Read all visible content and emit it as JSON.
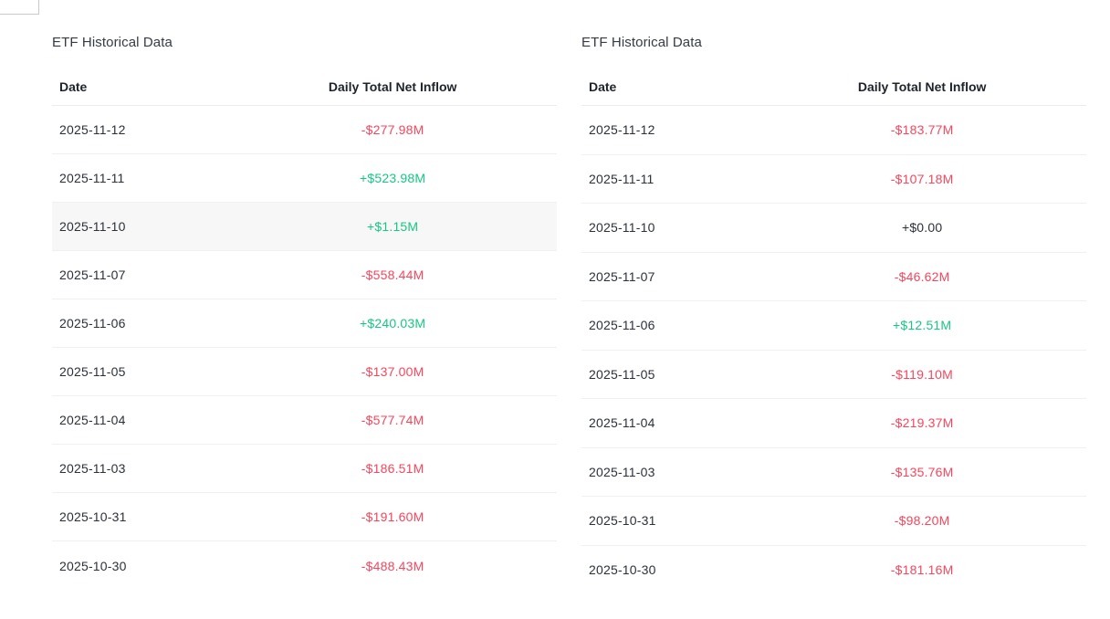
{
  "colors": {
    "positive": "#16c784",
    "negative": "#f6465d",
    "neutral": "#2b3139"
  },
  "tables": [
    {
      "title": "ETF Historical Data",
      "columns": {
        "date": "Date",
        "value": "Daily Total Net Inflow"
      },
      "rows": [
        {
          "date": "2025-11-12",
          "value": "-$277.98M",
          "direction": "negative",
          "highlighted": false
        },
        {
          "date": "2025-11-11",
          "value": "+$523.98M",
          "direction": "positive",
          "highlighted": false
        },
        {
          "date": "2025-11-10",
          "value": "+$1.15M",
          "direction": "positive",
          "highlighted": true
        },
        {
          "date": "2025-11-07",
          "value": "-$558.44M",
          "direction": "negative",
          "highlighted": false
        },
        {
          "date": "2025-11-06",
          "value": "+$240.03M",
          "direction": "positive",
          "highlighted": false
        },
        {
          "date": "2025-11-05",
          "value": "-$137.00M",
          "direction": "negative",
          "highlighted": false
        },
        {
          "date": "2025-11-04",
          "value": "-$577.74M",
          "direction": "negative",
          "highlighted": false
        },
        {
          "date": "2025-11-03",
          "value": "-$186.51M",
          "direction": "negative",
          "highlighted": false
        },
        {
          "date": "2025-10-31",
          "value": "-$191.60M",
          "direction": "negative",
          "highlighted": false
        },
        {
          "date": "2025-10-30",
          "value": "-$488.43M",
          "direction": "negative",
          "highlighted": false
        }
      ]
    },
    {
      "title": "ETF Historical Data",
      "columns": {
        "date": "Date",
        "value": "Daily Total Net Inflow"
      },
      "rows": [
        {
          "date": "2025-11-12",
          "value": "-$183.77M",
          "direction": "negative",
          "highlighted": false
        },
        {
          "date": "2025-11-11",
          "value": "-$107.18M",
          "direction": "negative",
          "highlighted": false
        },
        {
          "date": "2025-11-10",
          "value": "+$0.00",
          "direction": "neutral",
          "highlighted": false
        },
        {
          "date": "2025-11-07",
          "value": "-$46.62M",
          "direction": "negative",
          "highlighted": false
        },
        {
          "date": "2025-11-06",
          "value": "+$12.51M",
          "direction": "positive",
          "highlighted": false
        },
        {
          "date": "2025-11-05",
          "value": "-$119.10M",
          "direction": "negative",
          "highlighted": false
        },
        {
          "date": "2025-11-04",
          "value": "-$219.37M",
          "direction": "negative",
          "highlighted": false
        },
        {
          "date": "2025-11-03",
          "value": "-$135.76M",
          "direction": "negative",
          "highlighted": false
        },
        {
          "date": "2025-10-31",
          "value": "-$98.20M",
          "direction": "negative",
          "highlighted": false
        },
        {
          "date": "2025-10-30",
          "value": "-$181.16M",
          "direction": "negative",
          "highlighted": false
        }
      ]
    }
  ]
}
